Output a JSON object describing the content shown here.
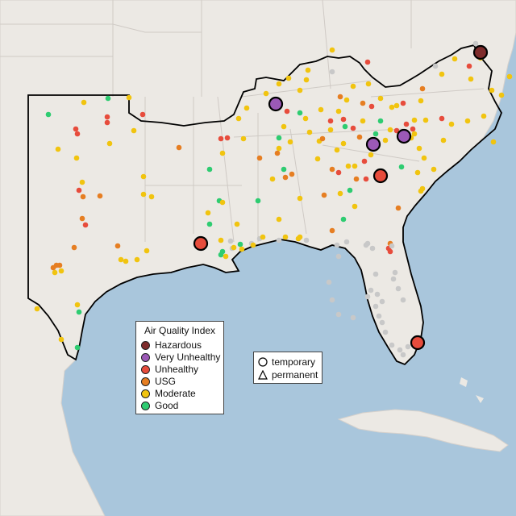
{
  "legend": {
    "title": "Air Quality Index",
    "categories": [
      {
        "label": "Hazardous",
        "color": "#7e2b2b"
      },
      {
        "label": "Very Unhealthy",
        "color": "#9b59b6"
      },
      {
        "label": "Unhealthy",
        "color": "#e74c3c"
      },
      {
        "label": "USG",
        "color": "#e67e22"
      },
      {
        "label": "Moderate",
        "color": "#f1c40f"
      },
      {
        "label": "Good",
        "color": "#2ecc71"
      }
    ]
  },
  "shape_legend": {
    "temporary": "temporary",
    "permanent": "permanent"
  },
  "colors": {
    "ocean": "#a9c6dc",
    "land": "#ece9e4",
    "land_outside": "#ded9d4",
    "state_border": "#cfcac5",
    "region_outline": "#000000",
    "no_data": "#c8c8c8"
  }
}
